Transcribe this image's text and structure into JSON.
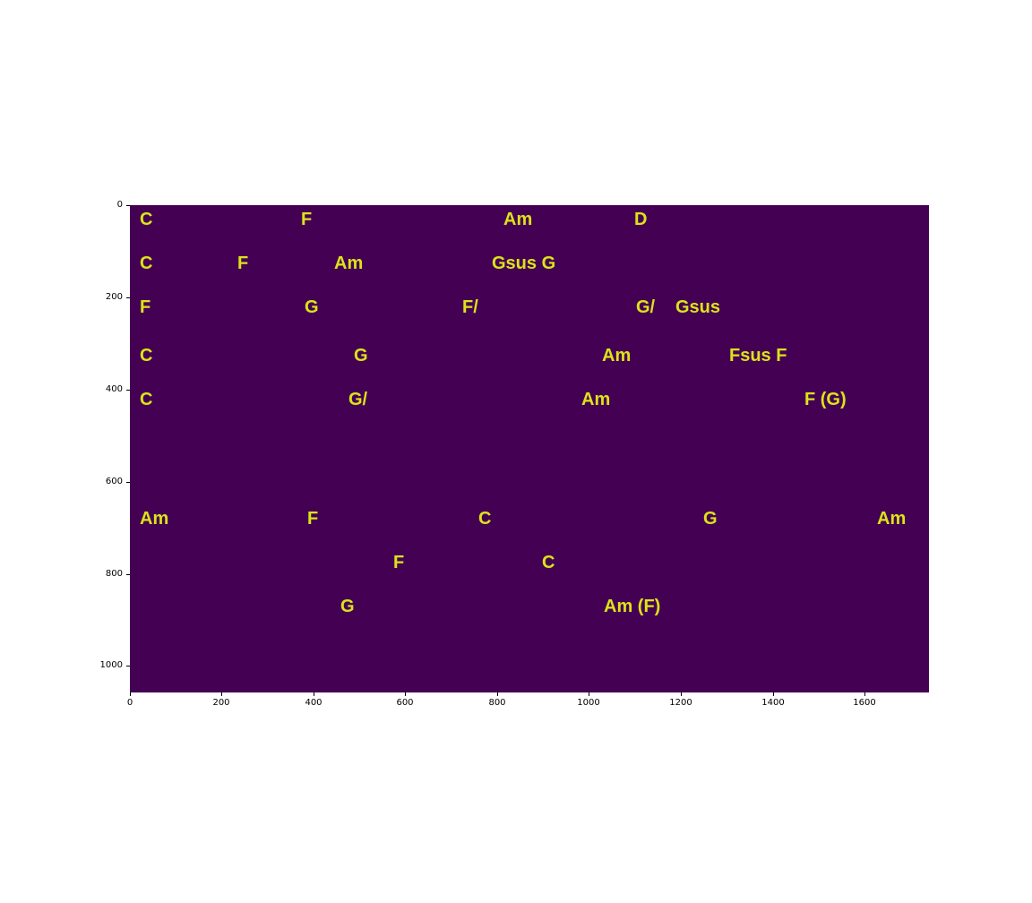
{
  "image": {
    "background_color": "#440154",
    "text_color": "#dce319",
    "chords": [
      "C",
      "F",
      "Am",
      "D",
      "C",
      "F",
      "Am",
      "Gsus G",
      "F",
      "G",
      "F/",
      "G/",
      "Gsus",
      "C",
      "G",
      "Am",
      "Fsus F",
      "C",
      "G/",
      "Am",
      "F (G)",
      "Am",
      "F",
      "C",
      "G",
      "Am",
      "F",
      "C",
      "G",
      "Am (F)"
    ]
  },
  "axes": {
    "x_ticks": [
      "0",
      "200",
      "400",
      "600",
      "800",
      "1000",
      "1200",
      "1400",
      "1600"
    ],
    "y_ticks": [
      "0",
      "200",
      "400",
      "600",
      "800",
      "1000"
    ]
  }
}
